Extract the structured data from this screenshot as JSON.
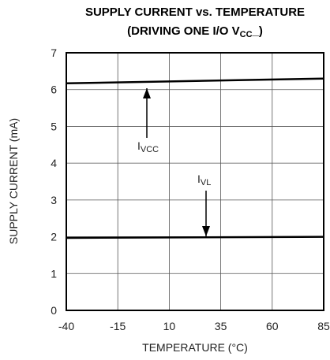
{
  "chart_data": {
    "type": "line",
    "title": "SUPPLY CURRENT vs. TEMPERATURE",
    "subtitle_parts": [
      "(DRIVING ONE I/O V",
      "CC",
      "_)"
    ],
    "x_label": "TEMPERATURE (°C)",
    "y_label": "SUPPLY CURRENT (mA)",
    "x": [
      -40,
      85
    ],
    "series": [
      {
        "name_parts": [
          "I",
          "VCC"
        ],
        "color": "#000000",
        "values": [
          6.17,
          6.3
        ]
      },
      {
        "name_parts": [
          "I",
          "VL"
        ],
        "color": "#000000",
        "values": [
          1.97,
          2.0
        ]
      }
    ],
    "xlim": [
      -40,
      85
    ],
    "xticks": [
      -40,
      -15,
      10,
      35,
      60,
      85
    ],
    "ylim": [
      0,
      7
    ],
    "yticks": [
      0,
      1,
      2,
      3,
      4,
      5,
      6,
      7
    ],
    "grid": true
  }
}
